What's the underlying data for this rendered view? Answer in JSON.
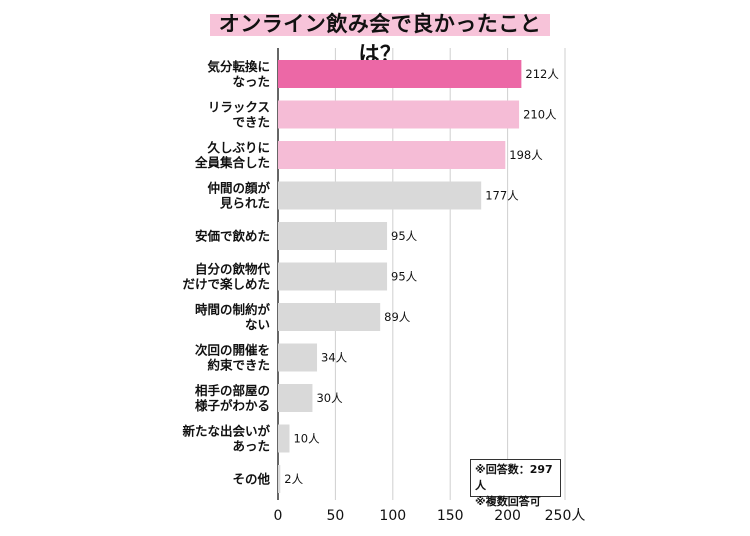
{
  "chart_data": {
    "type": "bar",
    "orientation": "horizontal",
    "title": "オンライン飲み会で良かったことは？",
    "categories": [
      [
        "気分転換に",
        "なった"
      ],
      [
        "リラックス",
        "できた"
      ],
      [
        "久しぶりに",
        "全員集合した"
      ],
      [
        "仲間の顔が",
        "見られた"
      ],
      [
        "安価で飲めた"
      ],
      [
        "自分の飲物代",
        "だけで楽しめた"
      ],
      [
        "時間の制約が",
        "ない"
      ],
      [
        "次回の開催を",
        "約束できた"
      ],
      [
        "相手の部屋の",
        "様子がわかる"
      ],
      [
        "新たな出会いが",
        "あった"
      ],
      [
        "その他"
      ]
    ],
    "values": [
      212,
      210,
      198,
      177,
      95,
      95,
      89,
      34,
      30,
      10,
      2
    ],
    "value_labels": [
      "212人",
      "210人",
      "198人",
      "177人",
      "95人",
      "95人",
      "89人",
      "34人",
      "30人",
      "10人",
      "2人"
    ],
    "bar_colors": [
      "#ec68a6",
      "#f5bcd6",
      "#f5bcd6",
      "#d9d9d9",
      "#d9d9d9",
      "#d9d9d9",
      "#d9d9d9",
      "#d9d9d9",
      "#d9d9d9",
      "#d9d9d9",
      "#d9d9d9"
    ],
    "xlim": [
      0,
      250
    ],
    "xticks": [
      "0",
      "50",
      "100",
      "150",
      "200",
      "250人"
    ],
    "grid": true
  },
  "notes": {
    "line1": "※回答数：297人",
    "line2": "※複数回答可"
  }
}
